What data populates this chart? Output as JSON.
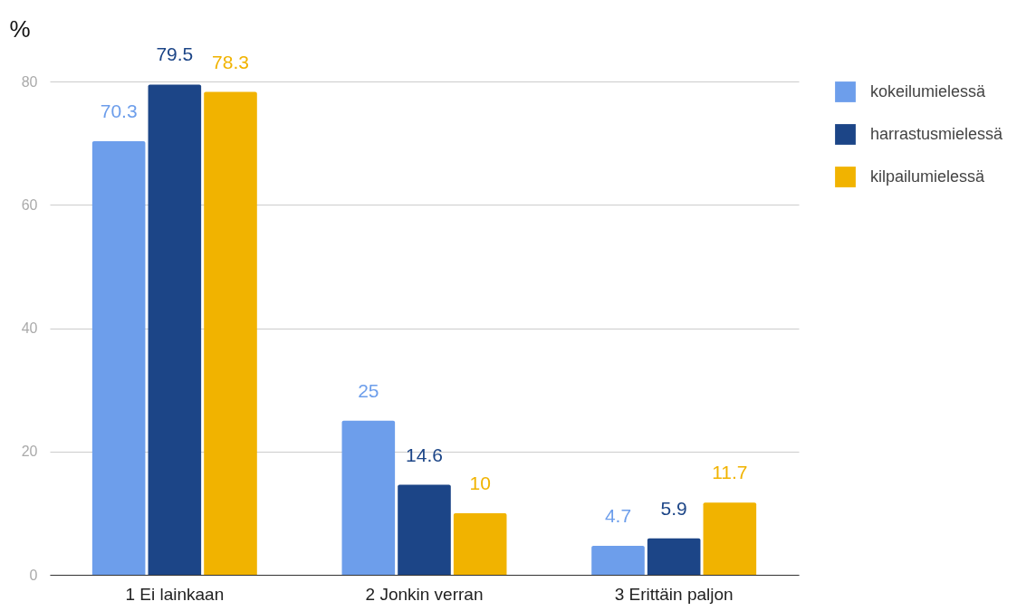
{
  "chart_data": {
    "type": "bar",
    "ylabel": "%",
    "categories": [
      "1 Ei lainkaan",
      "2 Jonkin verran",
      "3 Erittäin paljon"
    ],
    "series": [
      {
        "name": "kokeilumielessä",
        "color": "#6d9eeb",
        "values": [
          70.3,
          25,
          4.7
        ]
      },
      {
        "name": "harrastusmielessä",
        "color": "#1c4587",
        "values": [
          79.5,
          14.6,
          5.9
        ]
      },
      {
        "name": "kilpailumielessä",
        "color": "#f1b300",
        "values": [
          78.3,
          10,
          11.7
        ]
      }
    ],
    "ylim": [
      0,
      80
    ],
    "yticks": [
      0,
      20,
      40,
      60,
      80
    ],
    "grid": "y",
    "legend": "right",
    "data_labels": true
  }
}
